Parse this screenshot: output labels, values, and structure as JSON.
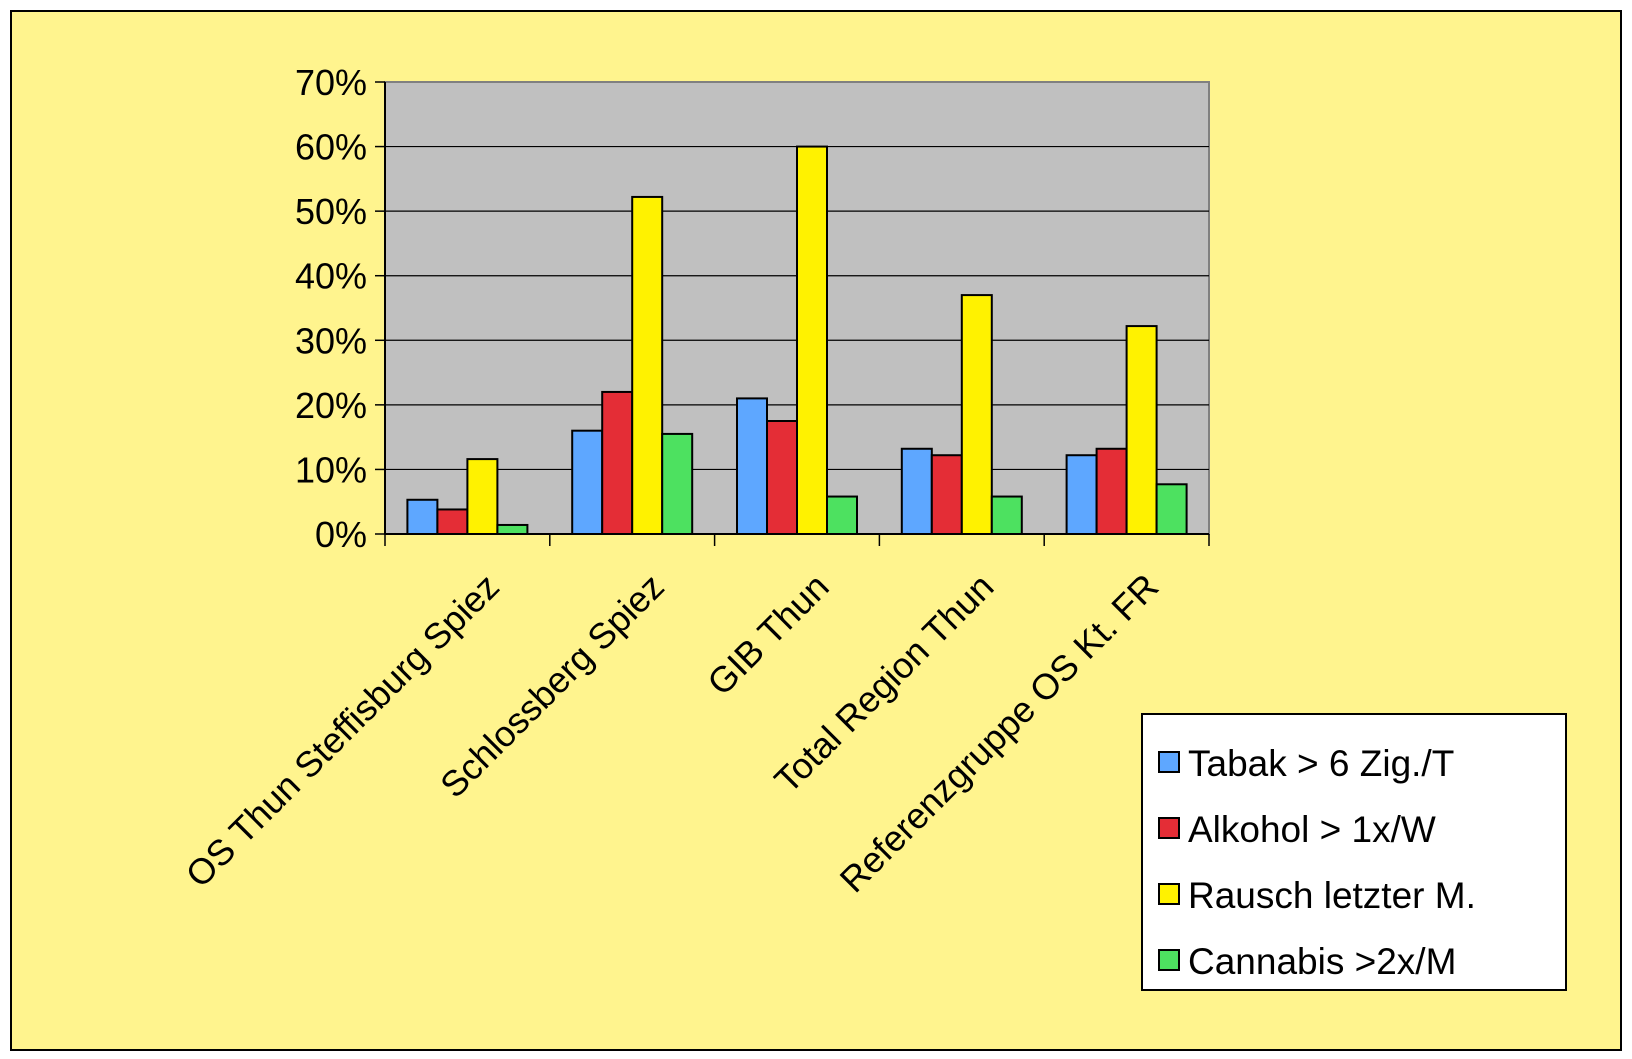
{
  "colors": {
    "slide_background": "#FFF48E",
    "plot_background": "#C0C0C0",
    "legend_background": "#FFFFFF"
  },
  "chart_data": {
    "type": "bar",
    "categories": [
      "OS Thun Steffisburg Spiez",
      "Schlossberg Spiez",
      "GIB Thun",
      "Total Region Thun",
      "Referenzgruppe OS Kt. FR"
    ],
    "series": [
      {
        "name": "Tabak > 6 Zig./T",
        "color": "#5EA7FF",
        "values": [
          5.3,
          16,
          21,
          13.2,
          12.2
        ]
      },
      {
        "name": "Alkohol > 1x/W",
        "color": "#E42D36",
        "values": [
          3.8,
          22,
          17.5,
          12.2,
          13.2
        ]
      },
      {
        "name": "Rausch letzter M.",
        "color": "#FFF200",
        "values": [
          11.6,
          52.2,
          60,
          37,
          32.2
        ]
      },
      {
        "name": "Cannabis >2x/M",
        "color": "#4DE160",
        "values": [
          1.4,
          15.5,
          5.8,
          5.8,
          7.7
        ]
      }
    ],
    "y_ticks": [
      "0%",
      "10%",
      "20%",
      "30%",
      "40%",
      "50%",
      "60%",
      "70%"
    ],
    "ylim": [
      0,
      70
    ],
    "grid": true,
    "legend_position": "bottom-right",
    "title": "",
    "xlabel": "",
    "ylabel": ""
  }
}
